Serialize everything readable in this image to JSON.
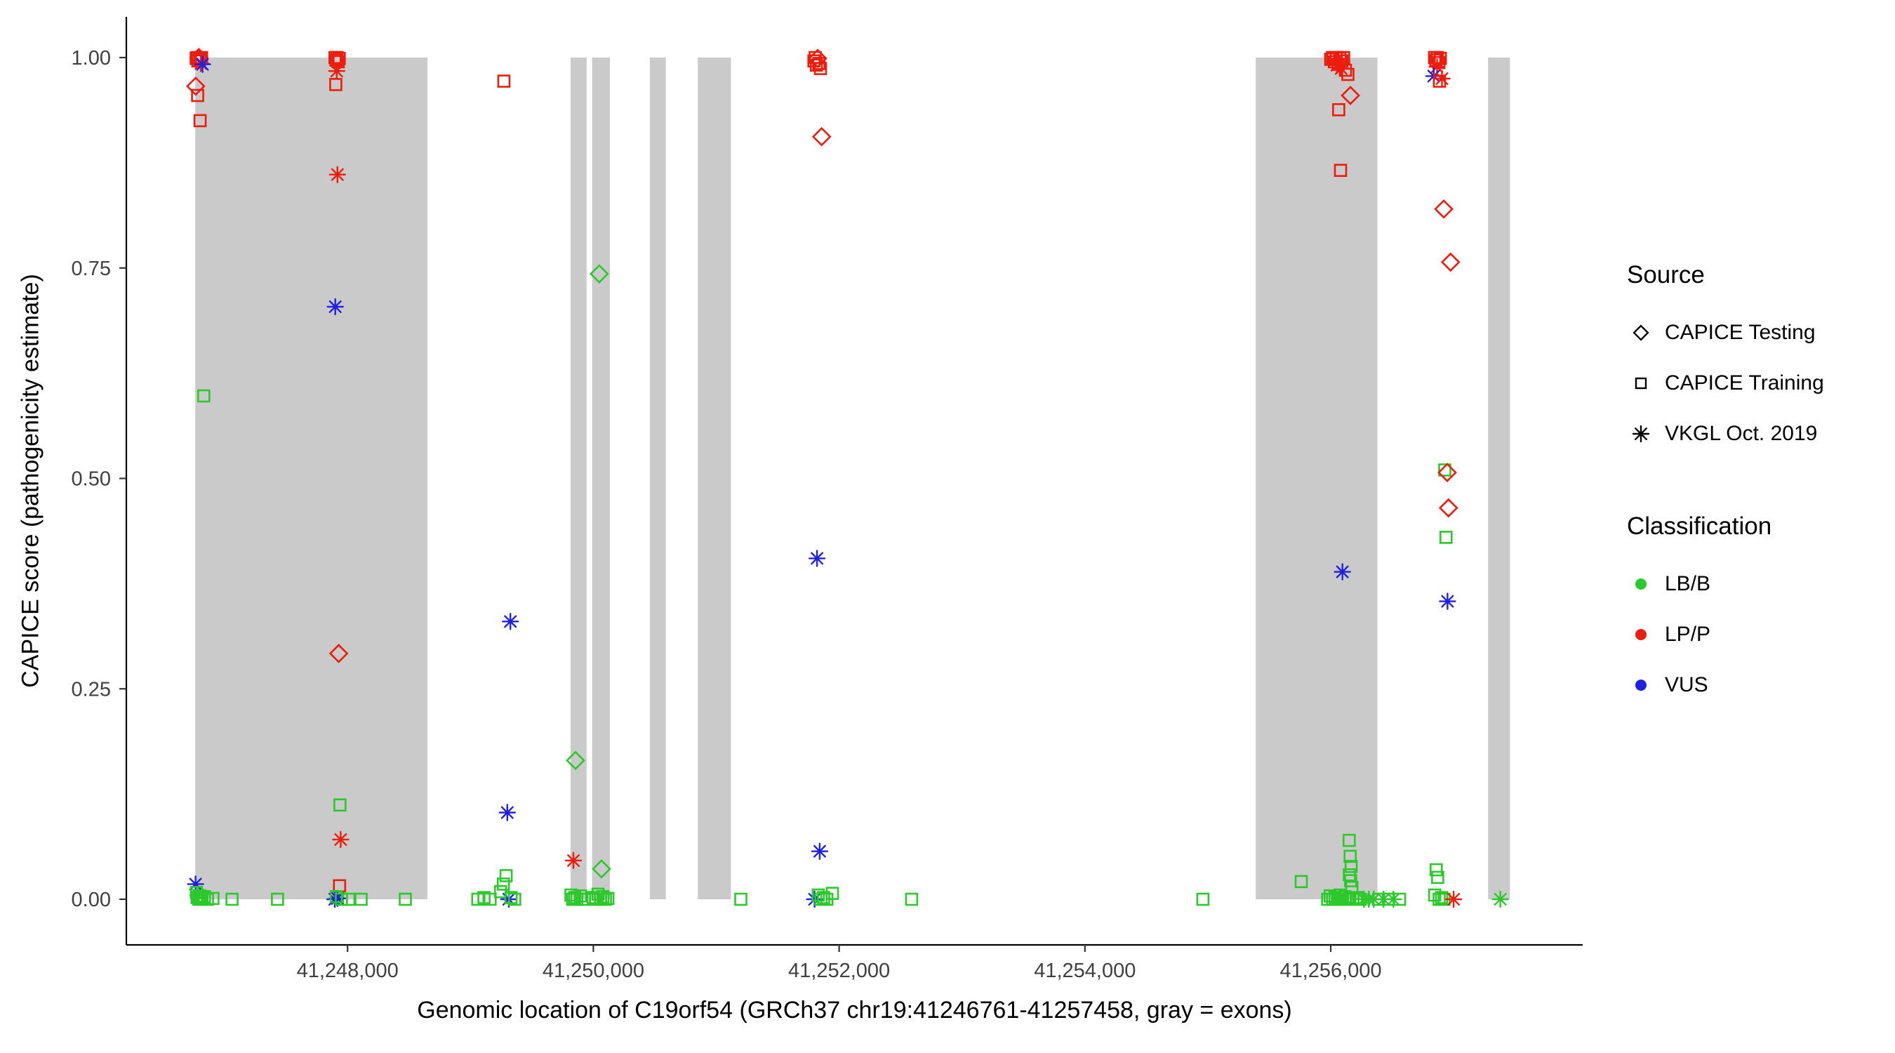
{
  "figure": {
    "x_axis_title": "Genomic location of C19orf54 (GRCh37 chr19:41246761-41257458, gray = exons)",
    "y_axis_title": "CAPICE score (pathogenicity estimate)"
  },
  "legend": {
    "source": {
      "title": "Source",
      "items": [
        "CAPICE Testing",
        "CAPICE Training",
        "VKGL Oct. 2019"
      ]
    },
    "classification": {
      "title": "Classification",
      "items": [
        "LB/B",
        "LP/P",
        "VUS"
      ]
    }
  },
  "chart_data": {
    "type": "scatter",
    "title": "",
    "xlabel": "Genomic location of C19orf54 (GRCh37 chr19:41246761-41257458, gray = exons)",
    "ylabel": "CAPICE score (pathogenicity estimate)",
    "x_domain": [
      41246200,
      41258050
    ],
    "y_domain": [
      0,
      1
    ],
    "grid": false,
    "legend_position": "right",
    "x_ticks": [
      {
        "value": 41248000,
        "label": "41,248,000"
      },
      {
        "value": 41250000,
        "label": "41,250,000"
      },
      {
        "value": 41252000,
        "label": "41,252,000"
      },
      {
        "value": 41254000,
        "label": "41,254,000"
      },
      {
        "value": 41256000,
        "label": "41,256,000"
      }
    ],
    "y_ticks": [
      {
        "value": 0,
        "label": "0.00"
      },
      {
        "value": 0.25,
        "label": "0.25"
      },
      {
        "value": 0.5,
        "label": "0.50"
      },
      {
        "value": 0.75,
        "label": "0.75"
      },
      {
        "value": 1,
        "label": "1.00"
      }
    ],
    "exon_color": "#cacaca",
    "exons": [
      [
        41246761,
        41248650
      ],
      [
        41249815,
        41249945
      ],
      [
        41249990,
        41250135
      ],
      [
        41250460,
        41250590
      ],
      [
        41250850,
        41251120
      ],
      [
        41255390,
        41256380
      ],
      [
        41257280,
        41257458
      ]
    ],
    "colors": {
      "LB/B": "#2bc92b",
      "LP/P": "#ed1c0c",
      "VUS": "#2020e0"
    },
    "shape_by_source": {
      "testing": "diamond",
      "training": "square",
      "vkgl": "asterisk"
    },
    "source_labels": {
      "testing": "CAPICE Testing",
      "training": "CAPICE Training",
      "vkgl": "VKGL Oct. 2019"
    },
    "points": [
      [
        41246768,
        0.999,
        "training",
        "LP/P"
      ],
      [
        41246775,
        1.0,
        "training",
        "LP/P"
      ],
      [
        41246782,
        0.996,
        "training",
        "LP/P"
      ],
      [
        41246790,
        1.0,
        "testing",
        "LP/P"
      ],
      [
        41246798,
        0.998,
        "training",
        "LP/P"
      ],
      [
        41246806,
        0.993,
        "vkgl",
        "LP/P"
      ],
      [
        41246812,
        1.0,
        "training",
        "LP/P"
      ],
      [
        41246820,
        0.992,
        "vkgl",
        "VUS"
      ],
      [
        41246765,
        0.966,
        "testing",
        "LP/P"
      ],
      [
        41246780,
        0.955,
        "training",
        "LP/P"
      ],
      [
        41246800,
        0.925,
        "training",
        "LP/P"
      ],
      [
        41246830,
        0.598,
        "training",
        "LB/B"
      ],
      [
        41246763,
        0.018,
        "vkgl",
        "VUS"
      ],
      [
        41246770,
        0.008,
        "training",
        "LB/B"
      ],
      [
        41246776,
        0.002,
        "training",
        "LB/B"
      ],
      [
        41246783,
        0.005,
        "vkgl",
        "LB/B"
      ],
      [
        41246790,
        0.0,
        "training",
        "LB/B"
      ],
      [
        41246798,
        0.004,
        "training",
        "LB/B"
      ],
      [
        41246806,
        0.001,
        "training",
        "LB/B"
      ],
      [
        41246815,
        0.0,
        "training",
        "LB/B"
      ],
      [
        41246835,
        0.003,
        "training",
        "LB/B"
      ],
      [
        41246860,
        0.0,
        "training",
        "LB/B"
      ],
      [
        41246905,
        0.001,
        "training",
        "LB/B"
      ],
      [
        41247060,
        0.0,
        "training",
        "LB/B"
      ],
      [
        41247430,
        0.0,
        "training",
        "LB/B"
      ],
      [
        41248010,
        0.0,
        "training",
        "LB/B"
      ],
      [
        41248470,
        0.0,
        "training",
        "LB/B"
      ],
      [
        41247898,
        1.0,
        "training",
        "LP/P"
      ],
      [
        41247906,
        0.997,
        "training",
        "LP/P"
      ],
      [
        41247915,
        1.0,
        "training",
        "LP/P"
      ],
      [
        41247924,
        0.995,
        "training",
        "LP/P"
      ],
      [
        41247932,
        0.999,
        "training",
        "LP/P"
      ],
      [
        41247912,
        0.984,
        "vkgl",
        "LP/P"
      ],
      [
        41247904,
        0.968,
        "training",
        "LP/P"
      ],
      [
        41247918,
        0.861,
        "vkgl",
        "LP/P"
      ],
      [
        41247900,
        0.704,
        "vkgl",
        "VUS"
      ],
      [
        41247928,
        0.292,
        "testing",
        "LP/P"
      ],
      [
        41247938,
        0.112,
        "training",
        "LB/B"
      ],
      [
        41247944,
        0.071,
        "vkgl",
        "LP/P"
      ],
      [
        41247935,
        0.016,
        "training",
        "LP/P"
      ],
      [
        41247896,
        0.0,
        "vkgl",
        "VUS"
      ],
      [
        41247918,
        0.001,
        "vkgl",
        "VUS"
      ],
      [
        41247908,
        0.003,
        "training",
        "LB/B"
      ],
      [
        41247950,
        0.0,
        "training",
        "LB/B"
      ],
      [
        41248110,
        0.0,
        "training",
        "LB/B"
      ],
      [
        41249272,
        0.972,
        "training",
        "LP/P"
      ],
      [
        41249325,
        0.33,
        "vkgl",
        "VUS"
      ],
      [
        41249300,
        0.103,
        "vkgl",
        "VUS"
      ],
      [
        41249290,
        0.028,
        "training",
        "LB/B"
      ],
      [
        41249268,
        0.018,
        "training",
        "LB/B"
      ],
      [
        41249245,
        0.009,
        "training",
        "LB/B"
      ],
      [
        41249060,
        0.0,
        "training",
        "LB/B"
      ],
      [
        41249110,
        0.002,
        "training",
        "LB/B"
      ],
      [
        41249160,
        0.0,
        "training",
        "LB/B"
      ],
      [
        41249312,
        0.0,
        "vkgl",
        "VUS"
      ],
      [
        41249330,
        0.002,
        "training",
        "LB/B"
      ],
      [
        41249360,
        0.0,
        "training",
        "LB/B"
      ],
      [
        41249838,
        0.046,
        "vkgl",
        "LP/P"
      ],
      [
        41249855,
        0.165,
        "testing",
        "LB/B"
      ],
      [
        41250048,
        0.743,
        "testing",
        "LB/B"
      ],
      [
        41250066,
        0.036,
        "testing",
        "LB/B"
      ],
      [
        41249818,
        0.005,
        "training",
        "LB/B"
      ],
      [
        41249832,
        0.0,
        "training",
        "LB/B"
      ],
      [
        41249848,
        0.002,
        "training",
        "LB/B"
      ],
      [
        41249866,
        0.0,
        "training",
        "LB/B"
      ],
      [
        41249895,
        0.004,
        "training",
        "LB/B"
      ],
      [
        41249928,
        0.0,
        "training",
        "LB/B"
      ],
      [
        41249998,
        0.002,
        "training",
        "LB/B"
      ],
      [
        41250018,
        0.0,
        "training",
        "LB/B"
      ],
      [
        41250038,
        0.006,
        "training",
        "LB/B"
      ],
      [
        41250058,
        0.0,
        "training",
        "LB/B"
      ],
      [
        41250078,
        0.003,
        "training",
        "LB/B"
      ],
      [
        41250098,
        0.0,
        "training",
        "LB/B"
      ],
      [
        41250118,
        0.001,
        "training",
        "LB/B"
      ],
      [
        41251200,
        0.0,
        "training",
        "LB/B"
      ],
      [
        41251795,
        0.996,
        "training",
        "LP/P"
      ],
      [
        41251805,
        1.0,
        "training",
        "LP/P"
      ],
      [
        41251815,
        0.991,
        "training",
        "LP/P"
      ],
      [
        41251825,
        0.999,
        "testing",
        "LP/P"
      ],
      [
        41251835,
        0.993,
        "training",
        "LP/P"
      ],
      [
        41251848,
        0.987,
        "training",
        "LP/P"
      ],
      [
        41251858,
        0.906,
        "testing",
        "LP/P"
      ],
      [
        41251820,
        0.405,
        "vkgl",
        "VUS"
      ],
      [
        41251842,
        0.057,
        "vkgl",
        "VUS"
      ],
      [
        41251800,
        0.0,
        "vkgl",
        "VUS"
      ],
      [
        41251830,
        0.005,
        "training",
        "LB/B"
      ],
      [
        41251852,
        0.0,
        "training",
        "LB/B"
      ],
      [
        41251874,
        0.002,
        "training",
        "LB/B"
      ],
      [
        41251900,
        0.0,
        "training",
        "LB/B"
      ],
      [
        41251945,
        0.007,
        "training",
        "LB/B"
      ],
      [
        41252590,
        0.0,
        "training",
        "LB/B"
      ],
      [
        41254960,
        0.0,
        "training",
        "LB/B"
      ],
      [
        41256000,
        0.998,
        "training",
        "LP/P"
      ],
      [
        41256015,
        1.0,
        "training",
        "LP/P"
      ],
      [
        41256030,
        0.995,
        "training",
        "LP/P"
      ],
      [
        41256045,
        1.0,
        "training",
        "LP/P"
      ],
      [
        41256060,
        0.992,
        "training",
        "LP/P"
      ],
      [
        41256075,
        0.999,
        "training",
        "LP/P"
      ],
      [
        41256090,
        0.996,
        "training",
        "LP/P"
      ],
      [
        41256105,
        1.0,
        "training",
        "LP/P"
      ],
      [
        41256050,
        0.991,
        "vkgl",
        "LP/P"
      ],
      [
        41256085,
        0.987,
        "vkgl",
        "LP/P"
      ],
      [
        41256120,
        0.985,
        "training",
        "LP/P"
      ],
      [
        41256140,
        0.98,
        "training",
        "LP/P"
      ],
      [
        41256160,
        0.955,
        "testing",
        "LP/P"
      ],
      [
        41256065,
        0.938,
        "training",
        "LP/P"
      ],
      [
        41256080,
        0.866,
        "training",
        "LP/P"
      ],
      [
        41256095,
        0.389,
        "vkgl",
        "VUS"
      ],
      [
        41255760,
        0.021,
        "training",
        "LB/B"
      ],
      [
        41256150,
        0.07,
        "training",
        "LB/B"
      ],
      [
        41256158,
        0.051,
        "training",
        "LB/B"
      ],
      [
        41256166,
        0.039,
        "training",
        "LB/B"
      ],
      [
        41256152,
        0.029,
        "training",
        "LB/B"
      ],
      [
        41256162,
        0.022,
        "training",
        "LB/B"
      ],
      [
        41256172,
        0.014,
        "training",
        "LB/B"
      ],
      [
        41255975,
        0.0,
        "training",
        "LB/B"
      ],
      [
        41255995,
        0.004,
        "training",
        "LB/B"
      ],
      [
        41256015,
        0.0,
        "training",
        "LB/B"
      ],
      [
        41256035,
        0.002,
        "training",
        "LB/B"
      ],
      [
        41256055,
        0.0,
        "training",
        "LB/B"
      ],
      [
        41256075,
        0.005,
        "training",
        "LB/B"
      ],
      [
        41256095,
        0.0,
        "training",
        "LB/B"
      ],
      [
        41256115,
        0.003,
        "training",
        "LB/B"
      ],
      [
        41256135,
        0.0,
        "training",
        "LB/B"
      ],
      [
        41256155,
        0.001,
        "training",
        "LB/B"
      ],
      [
        41256180,
        0.0,
        "training",
        "LB/B"
      ],
      [
        41256210,
        0.002,
        "training",
        "LB/B"
      ],
      [
        41256240,
        0.0,
        "training",
        "LB/B"
      ],
      [
        41256270,
        0.0,
        "vkgl",
        "LB/B"
      ],
      [
        41256310,
        0.0,
        "vkgl",
        "LB/B"
      ],
      [
        41256350,
        0.0,
        "vkgl",
        "LB/B"
      ],
      [
        41256390,
        0.0,
        "training",
        "LB/B"
      ],
      [
        41256430,
        0.0,
        "vkgl",
        "LB/B"
      ],
      [
        41256470,
        0.0,
        "training",
        "LB/B"
      ],
      [
        41256510,
        0.0,
        "vkgl",
        "LB/B"
      ],
      [
        41256560,
        0.0,
        "training",
        "LB/B"
      ],
      [
        41256845,
        1.0,
        "training",
        "LP/P"
      ],
      [
        41256856,
        0.997,
        "training",
        "LP/P"
      ],
      [
        41256868,
        1.0,
        "training",
        "LP/P"
      ],
      [
        41256880,
        0.994,
        "training",
        "LP/P"
      ],
      [
        41256892,
        0.999,
        "training",
        "LP/P"
      ],
      [
        41256865,
        0.989,
        "vkgl",
        "LP/P"
      ],
      [
        41256838,
        0.978,
        "vkgl",
        "VUS"
      ],
      [
        41256885,
        0.972,
        "training",
        "LP/P"
      ],
      [
        41256905,
        0.975,
        "vkgl",
        "LP/P"
      ],
      [
        41256920,
        0.82,
        "testing",
        "LP/P"
      ],
      [
        41256975,
        0.757,
        "testing",
        "LP/P"
      ],
      [
        41256928,
        0.51,
        "training",
        "LB/B"
      ],
      [
        41256948,
        0.507,
        "testing",
        "LP/P"
      ],
      [
        41256958,
        0.465,
        "testing",
        "LP/P"
      ],
      [
        41256938,
        0.43,
        "training",
        "LB/B"
      ],
      [
        41256950,
        0.354,
        "vkgl",
        "VUS"
      ],
      [
        41256858,
        0.035,
        "training",
        "LB/B"
      ],
      [
        41256870,
        0.026,
        "training",
        "LB/B"
      ],
      [
        41256846,
        0.005,
        "training",
        "LB/B"
      ],
      [
        41256882,
        0.0,
        "training",
        "LB/B"
      ],
      [
        41256902,
        0.002,
        "training",
        "LB/B"
      ],
      [
        41256922,
        0.0,
        "training",
        "LB/B"
      ],
      [
        41257000,
        0.0,
        "vkgl",
        "LP/P"
      ],
      [
        41257380,
        0.0,
        "vkgl",
        "LB/B"
      ]
    ]
  }
}
